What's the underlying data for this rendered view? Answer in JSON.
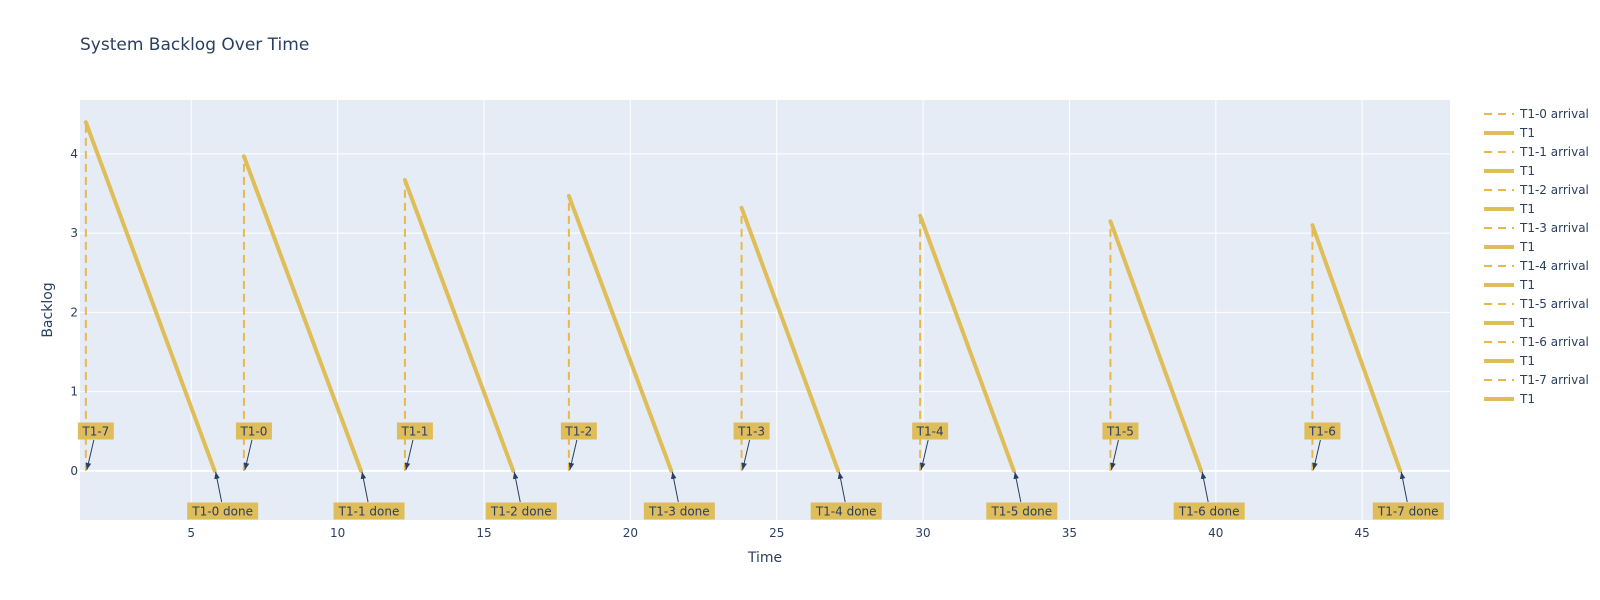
{
  "chart_data": {
    "type": "line",
    "title": "System Backlog Over Time",
    "xlabel": "Time",
    "ylabel": "Backlog",
    "xlim": [
      1.2,
      48.0
    ],
    "ylim": [
      -0.62,
      4.68
    ],
    "xticks": [
      5,
      10,
      15,
      20,
      25,
      30,
      35,
      40,
      45
    ],
    "yticks": [
      0,
      1,
      2,
      3,
      4
    ],
    "grid": true,
    "legend_position": "right",
    "colors": {
      "arrival_line": "#E9B84A",
      "service_line": "#DFBD58",
      "annotation_bg": "#DFBD58",
      "plot_bg": "#E5ECF6",
      "text": "#2A3F5F"
    },
    "tasks": [
      {
        "arrival": 1.4,
        "peak": 4.4,
        "done": 5.8,
        "arrival_label": "T1-7",
        "done_label": "T1-0 done"
      },
      {
        "arrival": 6.8,
        "peak": 3.97,
        "done": 10.8,
        "arrival_label": "T1-0",
        "done_label": "T1-1 done"
      },
      {
        "arrival": 12.3,
        "peak": 3.67,
        "done": 16.0,
        "arrival_label": "T1-1",
        "done_label": "T1-2 done"
      },
      {
        "arrival": 17.9,
        "peak": 3.47,
        "done": 21.4,
        "arrival_label": "T1-2",
        "done_label": "T1-3 done"
      },
      {
        "arrival": 23.8,
        "peak": 3.32,
        "done": 27.1,
        "arrival_label": "T1-3",
        "done_label": "T1-4 done"
      },
      {
        "arrival": 29.9,
        "peak": 3.22,
        "done": 33.1,
        "arrival_label": "T1-4",
        "done_label": "T1-5 done"
      },
      {
        "arrival": 36.4,
        "peak": 3.15,
        "done": 39.5,
        "arrival_label": "T1-5",
        "done_label": "T1-6 done"
      },
      {
        "arrival": 43.3,
        "peak": 3.1,
        "done": 46.3,
        "arrival_label": "T1-6",
        "done_label": "T1-7 done"
      }
    ],
    "legend": [
      {
        "name": "T1-0 arrival",
        "style": "dash"
      },
      {
        "name": "T1",
        "style": "solid"
      },
      {
        "name": "T1-1 arrival",
        "style": "dash"
      },
      {
        "name": "T1",
        "style": "solid"
      },
      {
        "name": "T1-2 arrival",
        "style": "dash"
      },
      {
        "name": "T1",
        "style": "solid"
      },
      {
        "name": "T1-3 arrival",
        "style": "dash"
      },
      {
        "name": "T1",
        "style": "solid"
      },
      {
        "name": "T1-4 arrival",
        "style": "dash"
      },
      {
        "name": "T1",
        "style": "solid"
      },
      {
        "name": "T1-5 arrival",
        "style": "dash"
      },
      {
        "name": "T1",
        "style": "solid"
      },
      {
        "name": "T1-6 arrival",
        "style": "dash"
      },
      {
        "name": "T1",
        "style": "solid"
      },
      {
        "name": "T1-7 arrival",
        "style": "dash"
      },
      {
        "name": "T1",
        "style": "solid"
      }
    ]
  }
}
